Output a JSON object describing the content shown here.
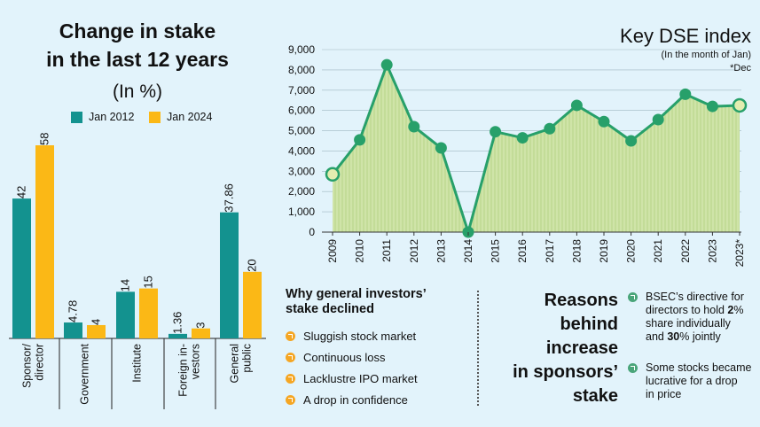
{
  "bar_panel": {
    "title_line1": "Change in stake",
    "title_line2": "in the last 12 years",
    "unit": "(In %)",
    "legend_2012": "Jan 2012",
    "legend_2024": "Jan 2024",
    "color_2012": "#13928f",
    "color_2024": "#fbb816"
  },
  "line_panel": {
    "title": "Key DSE index",
    "subtitle": "(In the month of Jan)",
    "note": "*Dec",
    "line_color": "#27a06a",
    "fill_color": "#cfe4a8"
  },
  "why": {
    "title_line1": "Why general investors’",
    "title_line2": "stake declined",
    "items": [
      "Sluggish stock market",
      "Continuous loss",
      "Lacklustre IPO market",
      "A drop in confidence"
    ]
  },
  "reasons": {
    "title_line1": "Reasons",
    "title_line2": "behind",
    "title_line3": "increase",
    "title_line4": "in sponsors’",
    "title_line5": "stake",
    "item1_line1": "BSEC’s directive for",
    "item1_line2_a": "directors to hold ",
    "item1_line2_b": "2",
    "item1_line2_c": "%",
    "item1_line3": "share individually",
    "item1_line4_a": "and ",
    "item1_line4_b": "30",
    "item1_line4_c": "% jointly",
    "item2_line1": "Some stocks became",
    "item2_line2": "lucrative for a drop",
    "item2_line3": "in price"
  },
  "chart_data": [
    {
      "type": "bar",
      "title": "Change in stake in the last 12 years",
      "ylabel": "(In %)",
      "categories": [
        {
          "label_lines": [
            "Sponsor/",
            "director"
          ]
        },
        {
          "label_lines": [
            "Government"
          ]
        },
        {
          "label_lines": [
            "Institute"
          ]
        },
        {
          "label_lines": [
            "Foreign in-",
            "vestors"
          ]
        },
        {
          "label_lines": [
            "General",
            "public"
          ]
        }
      ],
      "series": [
        {
          "name": "Jan 2012",
          "values": [
            42,
            4.78,
            14,
            1.36,
            37.86
          ],
          "labels": [
            "42",
            "4.78",
            "14",
            "1.36",
            "37.86"
          ]
        },
        {
          "name": "Jan 2024",
          "values": [
            58,
            4,
            15,
            3,
            20
          ],
          "labels": [
            "58",
            "4",
            "15",
            "3",
            "20"
          ]
        }
      ],
      "ylim": [
        0,
        58
      ]
    },
    {
      "type": "area",
      "title": "Key DSE index",
      "x": [
        "2009",
        "2010",
        "2011",
        "2012",
        "2013",
        "2014",
        "2015",
        "2016",
        "2017",
        "2018",
        "2019",
        "2020",
        "2021",
        "2022",
        "2023",
        "2023*"
      ],
      "values": [
        2850,
        4550,
        8250,
        5200,
        4150,
        0,
        4950,
        4650,
        5100,
        6250,
        5450,
        4500,
        5550,
        6800,
        6200,
        6250
      ],
      "ylim": [
        0,
        9000
      ],
      "yticks": [
        "0",
        "1,000",
        "2,000",
        "3,000",
        "4,000",
        "5,000",
        "6,000",
        "7,000",
        "8,000",
        "9,000"
      ],
      "highlighted_points": [
        0,
        15
      ]
    }
  ]
}
